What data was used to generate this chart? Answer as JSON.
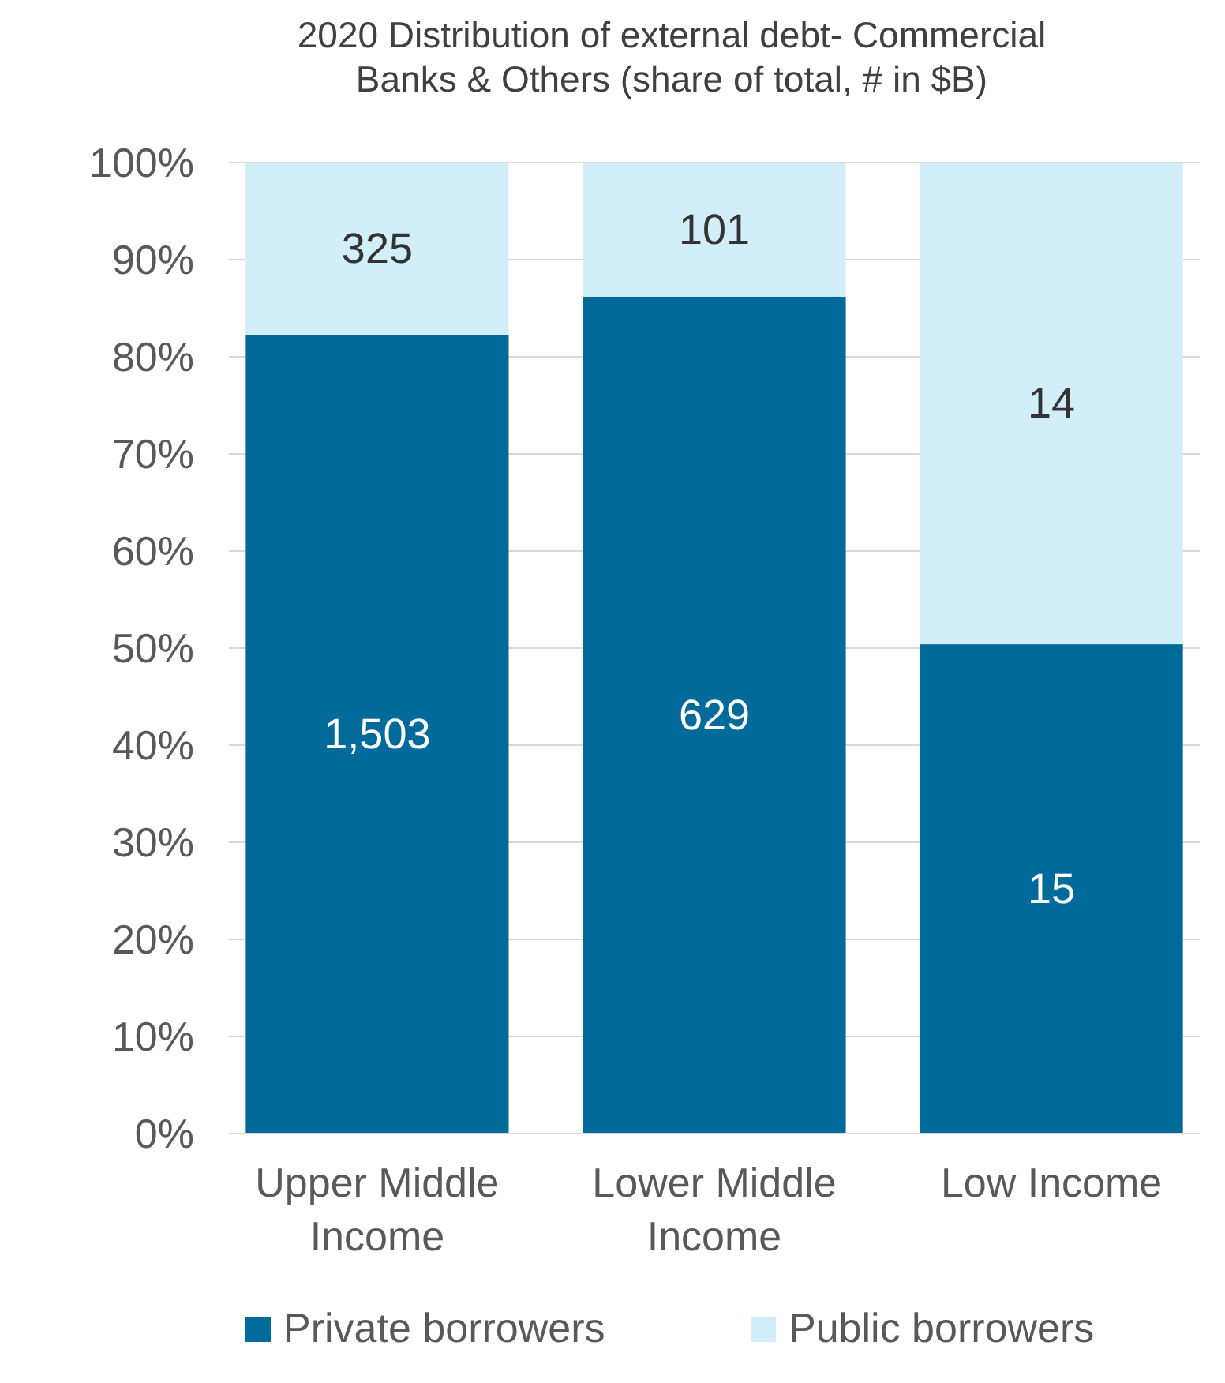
{
  "chart_data": {
    "type": "bar",
    "stacked": true,
    "title": "2020 Distribution of external debt- Commercial Banks & Others (share of total, # in $B)",
    "categories": [
      "Upper Middle Income",
      "Lower Middle Income",
      "Low Income"
    ],
    "series": [
      {
        "name": "Private borrowers",
        "color": "#006b9b",
        "values": [
          82.2,
          86.2,
          50.4
        ]
      },
      {
        "name": "Public borrowers",
        "color": "#d2eef9",
        "values": [
          17.8,
          13.8,
          49.6
        ]
      }
    ],
    "annotations": [
      "1,503",
      "629",
      "15",
      "325",
      "101",
      "14"
    ],
    "ylim": [
      0,
      100
    ],
    "yticks": [
      {
        "value": 0,
        "label": "0%"
      },
      {
        "value": 10,
        "label": "10%"
      },
      {
        "value": 20,
        "label": "20%"
      },
      {
        "value": 30,
        "label": "30%"
      },
      {
        "value": 40,
        "label": "40%"
      },
      {
        "value": 50,
        "label": "50%"
      },
      {
        "value": 60,
        "label": "60%"
      },
      {
        "value": 70,
        "label": "70%"
      },
      {
        "value": 80,
        "label": "80%"
      },
      {
        "value": 90,
        "label": "90%"
      },
      {
        "value": 100,
        "label": "100%"
      }
    ],
    "grid": "y",
    "legend": "bottom"
  }
}
